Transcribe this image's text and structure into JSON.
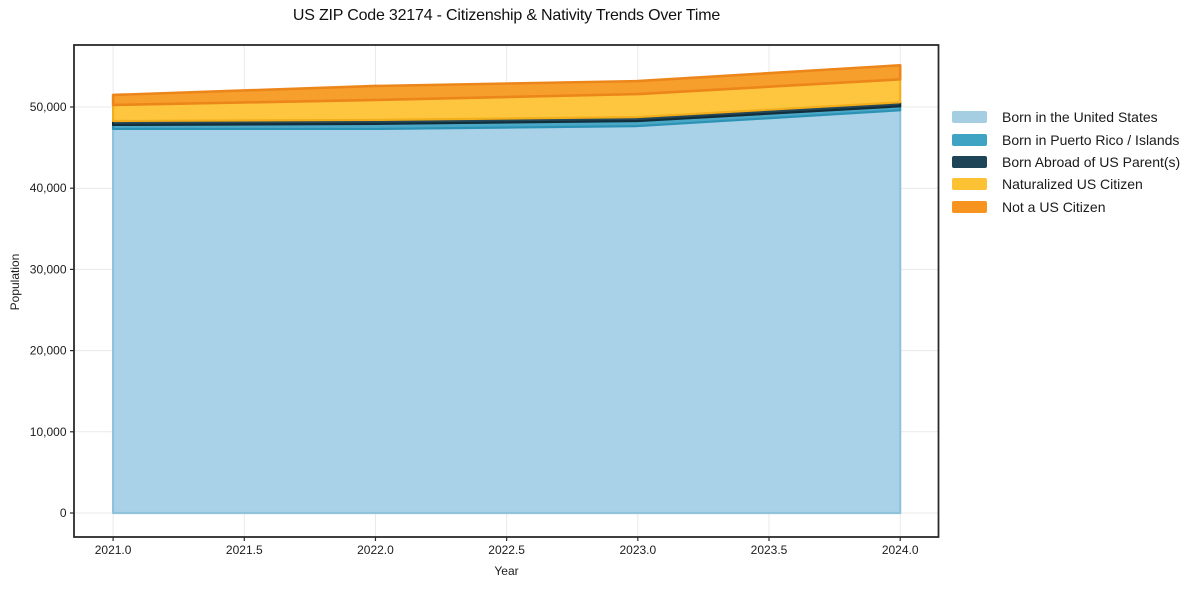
{
  "figure": {
    "title": "US ZIP Code 32174 - Citizenship & Nativity Trends Over Time",
    "xlabel": "Year",
    "ylabel": "Population"
  },
  "chart_data": {
    "type": "area",
    "stacked": true,
    "title": "US ZIP Code 32174 - Citizenship & Nativity Trends Over Time",
    "xlabel": "Year",
    "ylabel": "Population",
    "x": [
      2021,
      2022,
      2023,
      2024
    ],
    "series": [
      {
        "name": "Born in the United States",
        "values": [
          47300,
          47300,
          47650,
          49600
        ],
        "color": "#a6cee3",
        "fill": "#a9d2e8",
        "edge": "#8fc3dc"
      },
      {
        "name": "Born in Puerto Rico / Islands",
        "values": [
          490,
          620,
          620,
          490
        ],
        "color": "#3fa3c3",
        "fill": "#4aa8c6",
        "edge": "#2d93b6"
      },
      {
        "name": "Born Abroad of US Parent(s)",
        "values": [
          490,
          490,
          490,
          490
        ],
        "color": "#1e4557",
        "fill": "#24495b",
        "edge": "#122e3b"
      },
      {
        "name": "Naturalized US Citizen",
        "values": [
          1970,
          2460,
          2830,
          2830
        ],
        "color": "#fcc233",
        "fill": "#fdc63e",
        "edge": "#f3ae1b"
      },
      {
        "name": "Not a US Citizen",
        "values": [
          1230,
          1720,
          1600,
          1730
        ],
        "color": "#f6941f",
        "fill": "#f79f2c",
        "edge": "#ec861b"
      }
    ],
    "totals_by_year": [
      51480,
      52590,
      53190,
      55140
    ],
    "x_ticks": {
      "values": [
        2021.0,
        2021.5,
        2022.0,
        2022.5,
        2023.0,
        2023.5,
        2024.0
      ],
      "labels": [
        "2021.0",
        "2021.5",
        "2022.0",
        "2022.5",
        "2023.0",
        "2023.5",
        "2024.0"
      ]
    },
    "y_ticks": {
      "values": [
        0,
        10000,
        20000,
        30000,
        40000,
        50000
      ],
      "labels": [
        "0",
        "10,000",
        "20,000",
        "30,000",
        "40,000",
        "50,000"
      ]
    },
    "xlim": [
      2020.851,
      2024.146
    ],
    "ylim": [
      -2956,
      57636
    ],
    "grid": true,
    "legend_position": "right"
  },
  "style": {
    "grid_color": "#e9e9e9",
    "spine_color": "#2a2a2a",
    "tick_color": "#2a2a2a",
    "tick_label_color": "#1c1c1c",
    "background": "#ffffff"
  }
}
